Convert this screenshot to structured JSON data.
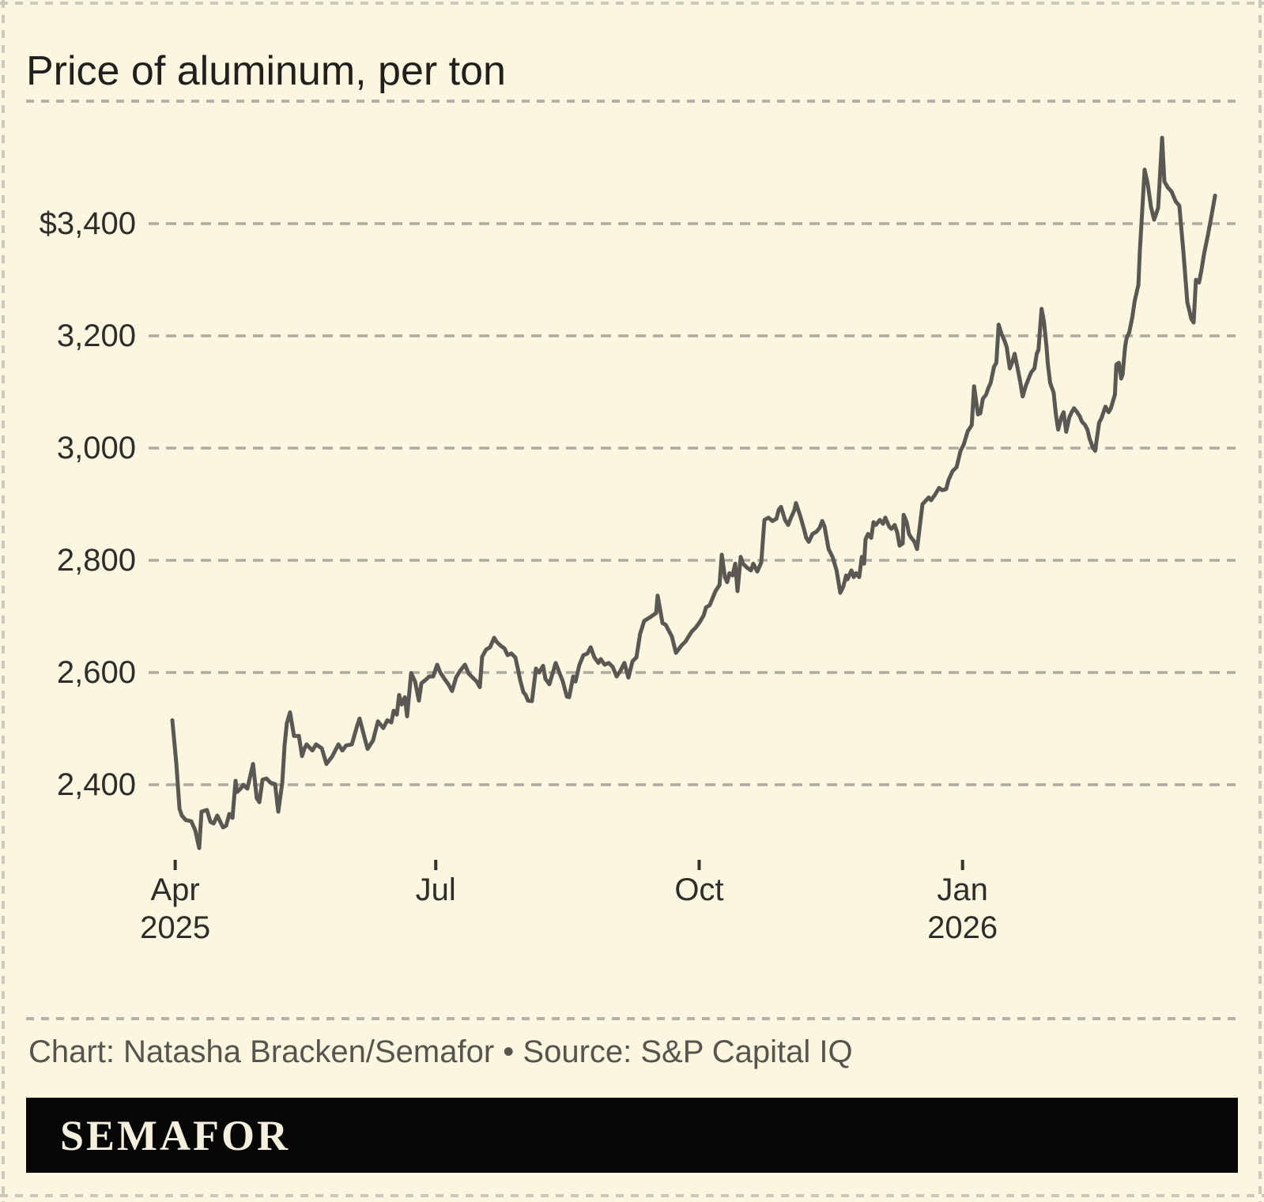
{
  "title": "Price of aluminum, per ton",
  "footer": {
    "credit": "Chart: Natasha Bracken/Semafor • Source: S&P Capital IQ",
    "brand": "SEMAFOR"
  },
  "colors": {
    "background": "#FAF6E0",
    "line": "#5A5853",
    "gridline": "#ADAB9F",
    "separator": "#B4B1A5",
    "border": "#CBC8BC",
    "tick": "#33322E",
    "brand_bar": "#060606",
    "brand_text": "#F5F0DD"
  },
  "chart_data": {
    "type": "line",
    "title": "Price of aluminum, per ton",
    "series_name": "Aluminum price, USD per ton",
    "x_unit": "days since 2025-03-31 (axis spans Apr 2025 – Mar 2026)",
    "x_range": [
      0,
      364.2
    ],
    "ylim": [
      2250,
      3600
    ],
    "grid": "horizontal dashed gridlines",
    "legend": "none",
    "y_ticks": [
      {
        "value": 3400,
        "label": "$3,400"
      },
      {
        "value": 3200,
        "label": "3,200"
      },
      {
        "value": 3000,
        "label": "3,000"
      },
      {
        "value": 2800,
        "label": "2,800"
      },
      {
        "value": 2600,
        "label": "2,600"
      },
      {
        "value": 2400,
        "label": "2,400"
      }
    ],
    "x_ticks": [
      {
        "day": 1,
        "label": "Apr",
        "year": "2025"
      },
      {
        "day": 92,
        "label": "Jul",
        "year": ""
      },
      {
        "day": 184,
        "label": "Oct",
        "year": ""
      },
      {
        "day": 276,
        "label": "Jan",
        "year": "2026"
      }
    ],
    "points": [
      [
        0,
        2515
      ],
      [
        1.4,
        2437
      ],
      [
        2.5,
        2357
      ],
      [
        3.3,
        2345
      ],
      [
        4.7,
        2337
      ],
      [
        6.6,
        2335
      ],
      [
        8,
        2319
      ],
      [
        9.4,
        2287
      ],
      [
        10.2,
        2352
      ],
      [
        12.1,
        2355
      ],
      [
        13.3,
        2334
      ],
      [
        14.4,
        2331
      ],
      [
        15.7,
        2345
      ],
      [
        17.7,
        2324
      ],
      [
        18.8,
        2327
      ],
      [
        19.9,
        2348
      ],
      [
        21,
        2341
      ],
      [
        22.1,
        2407
      ],
      [
        22.6,
        2387
      ],
      [
        24,
        2394
      ],
      [
        24.8,
        2400
      ],
      [
        26.2,
        2393
      ],
      [
        28.2,
        2437
      ],
      [
        29.5,
        2376
      ],
      [
        30.4,
        2369
      ],
      [
        31.5,
        2409
      ],
      [
        32.9,
        2411
      ],
      [
        34.2,
        2404
      ],
      [
        35.9,
        2401
      ],
      [
        37,
        2352
      ],
      [
        38.4,
        2404
      ],
      [
        39.2,
        2470
      ],
      [
        40,
        2510
      ],
      [
        41.1,
        2529
      ],
      [
        42.5,
        2487
      ],
      [
        44.2,
        2487
      ],
      [
        45.3,
        2451
      ],
      [
        46.1,
        2464
      ],
      [
        46.9,
        2472
      ],
      [
        48.9,
        2461
      ],
      [
        50.2,
        2472
      ],
      [
        52.2,
        2465
      ],
      [
        53.8,
        2437
      ],
      [
        55.8,
        2450
      ],
      [
        58,
        2472
      ],
      [
        59.4,
        2461
      ],
      [
        60.7,
        2470
      ],
      [
        62.7,
        2472
      ],
      [
        64.6,
        2506
      ],
      [
        65.4,
        2518
      ],
      [
        67.4,
        2479
      ],
      [
        68.2,
        2464
      ],
      [
        70.1,
        2479
      ],
      [
        71.8,
        2513
      ],
      [
        73.7,
        2501
      ],
      [
        75.1,
        2515
      ],
      [
        76.5,
        2511
      ],
      [
        77.3,
        2532
      ],
      [
        78.4,
        2525
      ],
      [
        79.2,
        2560
      ],
      [
        80.1,
        2543
      ],
      [
        81.2,
        2556
      ],
      [
        82,
        2522
      ],
      [
        83.4,
        2599
      ],
      [
        84.8,
        2584
      ],
      [
        86.1,
        2550
      ],
      [
        87,
        2581
      ],
      [
        88.3,
        2586
      ],
      [
        89.7,
        2593
      ],
      [
        91.1,
        2593
      ],
      [
        92.5,
        2614
      ],
      [
        93.6,
        2600
      ],
      [
        95,
        2589
      ],
      [
        96.4,
        2579
      ],
      [
        97.7,
        2567
      ],
      [
        99.1,
        2591
      ],
      [
        100.5,
        2603
      ],
      [
        102.2,
        2614
      ],
      [
        103.5,
        2598
      ],
      [
        104.9,
        2591
      ],
      [
        106.3,
        2584
      ],
      [
        107.4,
        2574
      ],
      [
        108.2,
        2628
      ],
      [
        109.6,
        2641
      ],
      [
        111,
        2645
      ],
      [
        112.4,
        2662
      ],
      [
        113.2,
        2655
      ],
      [
        114.6,
        2648
      ],
      [
        116,
        2643
      ],
      [
        117.1,
        2631
      ],
      [
        118.4,
        2634
      ],
      [
        119.8,
        2627
      ],
      [
        120.7,
        2606
      ],
      [
        121.5,
        2586
      ],
      [
        122.6,
        2565
      ],
      [
        123.4,
        2560
      ],
      [
        124.2,
        2550
      ],
      [
        125.6,
        2549
      ],
      [
        127,
        2607
      ],
      [
        128.1,
        2600
      ],
      [
        129.5,
        2612
      ],
      [
        130.3,
        2589
      ],
      [
        131.7,
        2579
      ],
      [
        132.5,
        2593
      ],
      [
        133.9,
        2617
      ],
      [
        135.3,
        2598
      ],
      [
        136.4,
        2584
      ],
      [
        137.8,
        2557
      ],
      [
        138.6,
        2556
      ],
      [
        140,
        2593
      ],
      [
        140.8,
        2584
      ],
      [
        142.2,
        2614
      ],
      [
        143.6,
        2631
      ],
      [
        145,
        2634
      ],
      [
        146.1,
        2645
      ],
      [
        147.4,
        2627
      ],
      [
        148.8,
        2617
      ],
      [
        149.6,
        2624
      ],
      [
        151,
        2614
      ],
      [
        152.4,
        2617
      ],
      [
        153.8,
        2610
      ],
      [
        155.2,
        2593
      ],
      [
        156.5,
        2603
      ],
      [
        157.9,
        2617
      ],
      [
        159.3,
        2591
      ],
      [
        160.7,
        2620
      ],
      [
        162.1,
        2627
      ],
      [
        163.4,
        2669
      ],
      [
        164.8,
        2692
      ],
      [
        167,
        2699
      ],
      [
        169,
        2706
      ],
      [
        169.5,
        2737
      ],
      [
        171.2,
        2688
      ],
      [
        172.3,
        2685
      ],
      [
        174.5,
        2664
      ],
      [
        175.9,
        2635
      ],
      [
        177.8,
        2648
      ],
      [
        179.2,
        2655
      ],
      [
        181.4,
        2673
      ],
      [
        182.8,
        2680
      ],
      [
        184.2,
        2690
      ],
      [
        185.6,
        2702
      ],
      [
        186.4,
        2716
      ],
      [
        187.7,
        2720
      ],
      [
        189.7,
        2745
      ],
      [
        191.1,
        2756
      ],
      [
        191.9,
        2810
      ],
      [
        193,
        2770
      ],
      [
        193.8,
        2761
      ],
      [
        194.6,
        2777
      ],
      [
        195.7,
        2773
      ],
      [
        196.6,
        2794
      ],
      [
        197.4,
        2745
      ],
      [
        198.5,
        2806
      ],
      [
        199.3,
        2794
      ],
      [
        200.7,
        2787
      ],
      [
        202.1,
        2782
      ],
      [
        202.9,
        2794
      ],
      [
        204.3,
        2780
      ],
      [
        205.7,
        2796
      ],
      [
        206.8,
        2872
      ],
      [
        208.2,
        2876
      ],
      [
        209.6,
        2870
      ],
      [
        211,
        2874
      ],
      [
        211.8,
        2890
      ],
      [
        212.6,
        2895
      ],
      [
        214,
        2872
      ],
      [
        215.1,
        2863
      ],
      [
        215.9,
        2874
      ],
      [
        217.3,
        2890
      ],
      [
        217.8,
        2902
      ],
      [
        219.2,
        2881
      ],
      [
        220.6,
        2856
      ],
      [
        221.4,
        2840
      ],
      [
        222.3,
        2833
      ],
      [
        223.6,
        2847
      ],
      [
        225,
        2851
      ],
      [
        226.1,
        2858
      ],
      [
        227,
        2870
      ],
      [
        227.8,
        2860
      ],
      [
        229.2,
        2820
      ],
      [
        230.6,
        2806
      ],
      [
        232,
        2782
      ],
      [
        233.3,
        2742
      ],
      [
        234.4,
        2754
      ],
      [
        235.3,
        2773
      ],
      [
        235.8,
        2766
      ],
      [
        237.2,
        2782
      ],
      [
        238,
        2770
      ],
      [
        238.8,
        2777
      ],
      [
        239.9,
        2770
      ],
      [
        240.8,
        2806
      ],
      [
        241.6,
        2794
      ],
      [
        242.1,
        2837
      ],
      [
        243,
        2847
      ],
      [
        244.1,
        2840
      ],
      [
        244.9,
        2868
      ],
      [
        245.7,
        2863
      ],
      [
        247.1,
        2872
      ],
      [
        248.2,
        2865
      ],
      [
        249,
        2876
      ],
      [
        250.4,
        2860
      ],
      [
        251.2,
        2856
      ],
      [
        252.3,
        2863
      ],
      [
        253.2,
        2849
      ],
      [
        254,
        2826
      ],
      [
        255.1,
        2830
      ],
      [
        255.4,
        2881
      ],
      [
        256.5,
        2868
      ],
      [
        257.3,
        2847
      ],
      [
        258.1,
        2840
      ],
      [
        259.2,
        2833
      ],
      [
        260.1,
        2820
      ],
      [
        260.9,
        2854
      ],
      [
        262,
        2900
      ],
      [
        264.2,
        2912
      ],
      [
        265,
        2907
      ],
      [
        266.4,
        2917
      ],
      [
        267.8,
        2929
      ],
      [
        268.9,
        2925
      ],
      [
        270.3,
        2927
      ],
      [
        271.1,
        2943
      ],
      [
        272.5,
        2959
      ],
      [
        273.9,
        2966
      ],
      [
        275.3,
        2995
      ],
      [
        276.4,
        3006
      ],
      [
        277.8,
        3030
      ],
      [
        279.2,
        3041
      ],
      [
        280,
        3110
      ],
      [
        281.4,
        3060
      ],
      [
        282.2,
        3062
      ],
      [
        283.1,
        3088
      ],
      [
        284.2,
        3095
      ],
      [
        285,
        3107
      ],
      [
        285.8,
        3116
      ],
      [
        287,
        3145
      ],
      [
        287.8,
        3152
      ],
      [
        288.6,
        3220
      ],
      [
        289.7,
        3202
      ],
      [
        290.6,
        3192
      ],
      [
        291.4,
        3180
      ],
      [
        292.5,
        3142
      ],
      [
        293.3,
        3152
      ],
      [
        294.2,
        3168
      ],
      [
        295.3,
        3140
      ],
      [
        296.1,
        3119
      ],
      [
        297,
        3092
      ],
      [
        298.1,
        3111
      ],
      [
        299.4,
        3128
      ],
      [
        300,
        3135
      ],
      [
        301.1,
        3142
      ],
      [
        301.9,
        3168
      ],
      [
        302.5,
        3175
      ],
      [
        303.6,
        3248
      ],
      [
        304.4,
        3227
      ],
      [
        305.3,
        3182
      ],
      [
        305.8,
        3149
      ],
      [
        306.6,
        3116
      ],
      [
        307.8,
        3099
      ],
      [
        308.6,
        3060
      ],
      [
        309.4,
        3033
      ],
      [
        310.5,
        3055
      ],
      [
        311.3,
        3064
      ],
      [
        312.2,
        3029
      ],
      [
        313.3,
        3055
      ],
      [
        314.1,
        3064
      ],
      [
        314.9,
        3071
      ],
      [
        316,
        3064
      ],
      [
        316.9,
        3057
      ],
      [
        317.7,
        3047
      ],
      [
        318.8,
        3041
      ],
      [
        319.6,
        3033
      ],
      [
        320.4,
        3016
      ],
      [
        321.5,
        3001
      ],
      [
        322.3,
        2995
      ],
      [
        323.7,
        3045
      ],
      [
        324.5,
        3053
      ],
      [
        325.9,
        3074
      ],
      [
        327,
        3064
      ],
      [
        327.8,
        3071
      ],
      [
        328.6,
        3085
      ],
      [
        329.2,
        3095
      ],
      [
        329.7,
        3149
      ],
      [
        330.6,
        3152
      ],
      [
        331.4,
        3124
      ],
      [
        331.9,
        3131
      ],
      [
        332.8,
        3182
      ],
      [
        333.3,
        3196
      ],
      [
        334.2,
        3206
      ],
      [
        335.3,
        3234
      ],
      [
        336.1,
        3262
      ],
      [
        337.4,
        3291
      ],
      [
        337.9,
        3350
      ],
      [
        339.6,
        3496
      ],
      [
        340.7,
        3470
      ],
      [
        341.8,
        3430
      ],
      [
        342.9,
        3407
      ],
      [
        344.3,
        3428
      ],
      [
        345.7,
        3553
      ],
      [
        346.5,
        3475
      ],
      [
        347.6,
        3465
      ],
      [
        349,
        3457
      ],
      [
        350.4,
        3440
      ],
      [
        351.7,
        3432
      ],
      [
        353.1,
        3352
      ],
      [
        354.5,
        3260
      ],
      [
        355.9,
        3230
      ],
      [
        356.7,
        3224
      ],
      [
        357.5,
        3300
      ],
      [
        358.6,
        3295
      ],
      [
        359.5,
        3319
      ],
      [
        360.3,
        3345
      ],
      [
        361.7,
        3380
      ],
      [
        363.1,
        3418
      ],
      [
        364.2,
        3450
      ]
    ]
  }
}
